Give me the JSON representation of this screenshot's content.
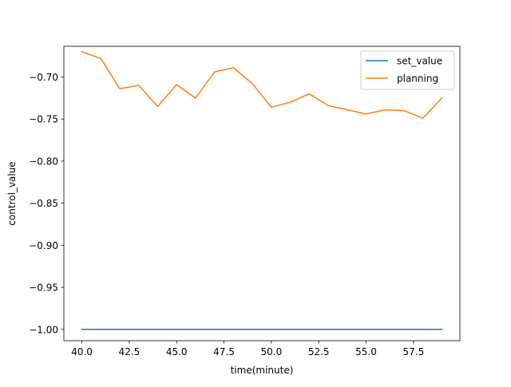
{
  "chart_data": {
    "type": "line",
    "title": "",
    "xlabel": "time(minute)",
    "ylabel": "control_value",
    "xlim": [
      39.05,
      59.95
    ],
    "ylim": [
      -1.0135,
      -0.6635
    ],
    "xticks": [
      40.0,
      42.5,
      45.0,
      47.5,
      50.0,
      52.5,
      55.0,
      57.5
    ],
    "xtick_labels": [
      "40.0",
      "42.5",
      "45.0",
      "47.5",
      "50.0",
      "52.5",
      "55.0",
      "57.5"
    ],
    "yticks": [
      -1.0,
      -0.95,
      -0.9,
      -0.85,
      -0.8,
      -0.75,
      -0.7
    ],
    "ytick_labels": [
      "−1.00",
      "−0.95",
      "−0.90",
      "−0.85",
      "−0.80",
      "−0.75",
      "−0.70"
    ],
    "grid": false,
    "legend_position": "top-right",
    "x": [
      40,
      41,
      42,
      43,
      44,
      45,
      46,
      47,
      48,
      49,
      50,
      51,
      52,
      53,
      54,
      55,
      56,
      57,
      58,
      59
    ],
    "series": [
      {
        "name": "set_value",
        "color": "#1f77b4",
        "values": [
          -1.0,
          -1.0,
          -1.0,
          -1.0,
          -1.0,
          -1.0,
          -1.0,
          -1.0,
          -1.0,
          -1.0,
          -1.0,
          -1.0,
          -1.0,
          -1.0,
          -1.0,
          -1.0,
          -1.0,
          -1.0,
          -1.0,
          -1.0
        ]
      },
      {
        "name": "planning",
        "color": "#ff7f0e",
        "values": [
          -0.67,
          -0.678,
          -0.714,
          -0.71,
          -0.735,
          -0.709,
          -0.725,
          -0.694,
          -0.689,
          -0.708,
          -0.736,
          -0.73,
          -0.72,
          -0.734,
          -0.739,
          -0.744,
          -0.739,
          -0.74,
          -0.749,
          -0.725
        ]
      }
    ]
  }
}
